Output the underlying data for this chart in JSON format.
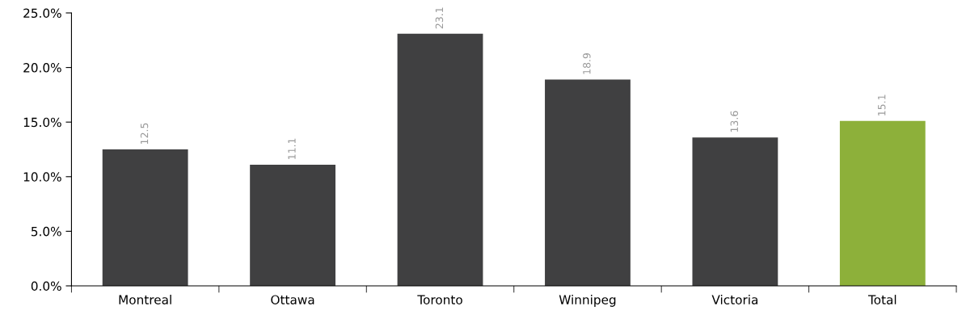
{
  "chart_data": {
    "type": "bar",
    "categories": [
      "Montreal",
      "Ottawa",
      "Toronto",
      "Winnipeg",
      "Victoria",
      "Total"
    ],
    "values": [
      12.5,
      11.1,
      23.1,
      18.9,
      13.6,
      15.1
    ],
    "colors": [
      "#404041",
      "#404041",
      "#404041",
      "#404041",
      "#404041",
      "#8db03a"
    ],
    "ylim": [
      0,
      25
    ],
    "yticks": [
      {
        "value": 0,
        "label": "0.0%"
      },
      {
        "value": 5,
        "label": "5.0%"
      },
      {
        "value": 10,
        "label": "10.0%"
      },
      {
        "value": 15,
        "label": "15.0%"
      },
      {
        "value": 20,
        "label": "20.0%"
      },
      {
        "value": 25,
        "label": "25.0%"
      }
    ],
    "data_labels": true,
    "grid": false,
    "legend": false
  }
}
